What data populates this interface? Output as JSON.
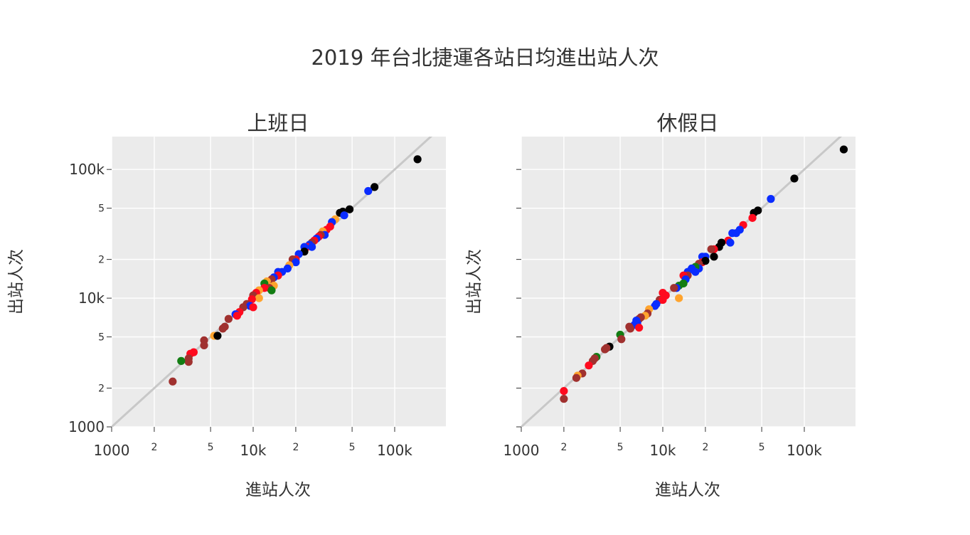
{
  "chart_data": {
    "type": "scatter",
    "title": "2019 年台北捷運各站日均進出站人次",
    "xlabel": "進站人次",
    "ylabel": "出站人次",
    "scale": "log",
    "xlim": [
      1000,
      230000
    ],
    "ylim": [
      1000,
      180000
    ],
    "grid": true,
    "background": "#ebebeb",
    "reference_line": "y = x",
    "x_ticks": [
      "1000",
      "2",
      "5",
      "10k",
      "2",
      "5",
      "100k"
    ],
    "y_ticks": [
      "1000",
      "2",
      "5",
      "10k",
      "2",
      "5",
      "100k"
    ],
    "colors": {
      "black": "#000000",
      "blue": "#0a2cff",
      "red": "#ff0a1e",
      "brown": "#a0312f",
      "orange": "#ffa42e",
      "green": "#137d13"
    },
    "panels": [
      {
        "title": "上班日",
        "points": [
          {
            "x": 145000,
            "y": 120000,
            "c": "black"
          },
          {
            "x": 72000,
            "y": 73000,
            "c": "black"
          },
          {
            "x": 65000,
            "y": 68000,
            "c": "blue"
          },
          {
            "x": 48000,
            "y": 49000,
            "c": "black"
          },
          {
            "x": 43000,
            "y": 47000,
            "c": "black"
          },
          {
            "x": 41000,
            "y": 46000,
            "c": "black"
          },
          {
            "x": 44000,
            "y": 44000,
            "c": "blue"
          },
          {
            "x": 38000,
            "y": 41000,
            "c": "orange"
          },
          {
            "x": 36000,
            "y": 39000,
            "c": "blue"
          },
          {
            "x": 35000,
            "y": 36000,
            "c": "red"
          },
          {
            "x": 33000,
            "y": 34000,
            "c": "red"
          },
          {
            "x": 31000,
            "y": 33000,
            "c": "orange"
          },
          {
            "x": 32000,
            "y": 31000,
            "c": "blue"
          },
          {
            "x": 30000,
            "y": 31000,
            "c": "brown"
          },
          {
            "x": 29000,
            "y": 30000,
            "c": "red"
          },
          {
            "x": 28000,
            "y": 29000,
            "c": "blue"
          },
          {
            "x": 27000,
            "y": 28000,
            "c": "red"
          },
          {
            "x": 26000,
            "y": 27000,
            "c": "brown"
          },
          {
            "x": 25000,
            "y": 26000,
            "c": "blue"
          },
          {
            "x": 24000,
            "y": 25000,
            "c": "red"
          },
          {
            "x": 26000,
            "y": 25000,
            "c": "blue"
          },
          {
            "x": 23000,
            "y": 25000,
            "c": "blue"
          },
          {
            "x": 23000,
            "y": 23000,
            "c": "black"
          },
          {
            "x": 21000,
            "y": 22000,
            "c": "blue"
          },
          {
            "x": 20000,
            "y": 20000,
            "c": "red"
          },
          {
            "x": 19000,
            "y": 20000,
            "c": "brown"
          },
          {
            "x": 20000,
            "y": 19000,
            "c": "blue"
          },
          {
            "x": 18000,
            "y": 18000,
            "c": "orange"
          },
          {
            "x": 17500,
            "y": 17000,
            "c": "blue"
          },
          {
            "x": 16000,
            "y": 16000,
            "c": "blue"
          },
          {
            "x": 15000,
            "y": 16000,
            "c": "blue"
          },
          {
            "x": 15000,
            "y": 15000,
            "c": "red"
          },
          {
            "x": 14000,
            "y": 14500,
            "c": "blue"
          },
          {
            "x": 13500,
            "y": 14000,
            "c": "brown"
          },
          {
            "x": 12500,
            "y": 13500,
            "c": "orange"
          },
          {
            "x": 12000,
            "y": 13000,
            "c": "green"
          },
          {
            "x": 14000,
            "y": 12500,
            "c": "orange"
          },
          {
            "x": 13000,
            "y": 12000,
            "c": "brown"
          },
          {
            "x": 12000,
            "y": 12000,
            "c": "red"
          },
          {
            "x": 13500,
            "y": 11500,
            "c": "green"
          },
          {
            "x": 11000,
            "y": 11500,
            "c": "orange"
          },
          {
            "x": 10500,
            "y": 11000,
            "c": "red"
          },
          {
            "x": 10000,
            "y": 10500,
            "c": "brown"
          },
          {
            "x": 11000,
            "y": 10000,
            "c": "orange"
          },
          {
            "x": 9800,
            "y": 9800,
            "c": "red"
          },
          {
            "x": 9000,
            "y": 9000,
            "c": "brown"
          },
          {
            "x": 9500,
            "y": 8700,
            "c": "blue"
          },
          {
            "x": 10000,
            "y": 8500,
            "c": "red"
          },
          {
            "x": 8500,
            "y": 8500,
            "c": "brown"
          },
          {
            "x": 8000,
            "y": 7800,
            "c": "red"
          },
          {
            "x": 7500,
            "y": 7500,
            "c": "blue"
          },
          {
            "x": 7700,
            "y": 7300,
            "c": "red"
          },
          {
            "x": 6700,
            "y": 6900,
            "c": "brown"
          },
          {
            "x": 6300,
            "y": 6000,
            "c": "brown"
          },
          {
            "x": 6100,
            "y": 5800,
            "c": "brown"
          },
          {
            "x": 5300,
            "y": 5100,
            "c": "orange"
          },
          {
            "x": 5600,
            "y": 5100,
            "c": "black"
          },
          {
            "x": 4500,
            "y": 4700,
            "c": "brown"
          },
          {
            "x": 4500,
            "y": 4300,
            "c": "brown"
          },
          {
            "x": 3800,
            "y": 3800,
            "c": "red"
          },
          {
            "x": 3600,
            "y": 3700,
            "c": "red"
          },
          {
            "x": 3500,
            "y": 3400,
            "c": "brown"
          },
          {
            "x": 3500,
            "y": 3200,
            "c": "brown"
          },
          {
            "x": 3100,
            "y": 3250,
            "c": "green"
          },
          {
            "x": 2700,
            "y": 2250,
            "c": "brown"
          }
        ]
      },
      {
        "title": "休假日",
        "points": [
          {
            "x": 190000,
            "y": 143000,
            "c": "black"
          },
          {
            "x": 85000,
            "y": 85000,
            "c": "black"
          },
          {
            "x": 58000,
            "y": 59000,
            "c": "blue"
          },
          {
            "x": 47000,
            "y": 48000,
            "c": "black"
          },
          {
            "x": 44000,
            "y": 46000,
            "c": "black"
          },
          {
            "x": 43000,
            "y": 42000,
            "c": "red"
          },
          {
            "x": 37000,
            "y": 37000,
            "c": "red"
          },
          {
            "x": 35000,
            "y": 34000,
            "c": "blue"
          },
          {
            "x": 33000,
            "y": 32000,
            "c": "blue"
          },
          {
            "x": 31000,
            "y": 32000,
            "c": "blue"
          },
          {
            "x": 29000,
            "y": 28000,
            "c": "red"
          },
          {
            "x": 30000,
            "y": 27000,
            "c": "blue"
          },
          {
            "x": 26000,
            "y": 27000,
            "c": "black"
          },
          {
            "x": 25000,
            "y": 25000,
            "c": "black"
          },
          {
            "x": 23000,
            "y": 24000,
            "c": "red"
          },
          {
            "x": 22000,
            "y": 24000,
            "c": "brown"
          },
          {
            "x": 20000,
            "y": 21000,
            "c": "blue"
          },
          {
            "x": 19000,
            "y": 21000,
            "c": "blue"
          },
          {
            "x": 23000,
            "y": 21000,
            "c": "black"
          },
          {
            "x": 19000,
            "y": 19000,
            "c": "red"
          },
          {
            "x": 20000,
            "y": 19500,
            "c": "black"
          },
          {
            "x": 18000,
            "y": 18500,
            "c": "brown"
          },
          {
            "x": 18000,
            "y": 17000,
            "c": "blue"
          },
          {
            "x": 17000,
            "y": 17500,
            "c": "green"
          },
          {
            "x": 16000,
            "y": 17000,
            "c": "blue"
          },
          {
            "x": 17000,
            "y": 16000,
            "c": "blue"
          },
          {
            "x": 15000,
            "y": 16000,
            "c": "blue"
          },
          {
            "x": 15000,
            "y": 15000,
            "c": "brown"
          },
          {
            "x": 14000,
            "y": 15000,
            "c": "red"
          },
          {
            "x": 14500,
            "y": 14000,
            "c": "blue"
          },
          {
            "x": 14000,
            "y": 13000,
            "c": "green"
          },
          {
            "x": 13000,
            "y": 12500,
            "c": "green"
          },
          {
            "x": 12500,
            "y": 12000,
            "c": "blue"
          },
          {
            "x": 12000,
            "y": 12000,
            "c": "brown"
          },
          {
            "x": 10000,
            "y": 11000,
            "c": "red"
          },
          {
            "x": 10500,
            "y": 10500,
            "c": "red"
          },
          {
            "x": 13000,
            "y": 10000,
            "c": "orange"
          },
          {
            "x": 9500,
            "y": 9700,
            "c": "brown"
          },
          {
            "x": 10000,
            "y": 9700,
            "c": "red"
          },
          {
            "x": 9000,
            "y": 9000,
            "c": "blue"
          },
          {
            "x": 8800,
            "y": 8700,
            "c": "blue"
          },
          {
            "x": 8000,
            "y": 8200,
            "c": "orange"
          },
          {
            "x": 7800,
            "y": 7600,
            "c": "brown"
          },
          {
            "x": 7500,
            "y": 7300,
            "c": "orange"
          },
          {
            "x": 7000,
            "y": 7100,
            "c": "brown"
          },
          {
            "x": 6800,
            "y": 6900,
            "c": "brown"
          },
          {
            "x": 6500,
            "y": 6700,
            "c": "blue"
          },
          {
            "x": 6600,
            "y": 6400,
            "c": "blue"
          },
          {
            "x": 6300,
            "y": 6200,
            "c": "blue"
          },
          {
            "x": 6800,
            "y": 5900,
            "c": "red"
          },
          {
            "x": 5800,
            "y": 6000,
            "c": "brown"
          },
          {
            "x": 5900,
            "y": 5800,
            "c": "brown"
          },
          {
            "x": 5000,
            "y": 5200,
            "c": "green"
          },
          {
            "x": 5100,
            "y": 4800,
            "c": "brown"
          },
          {
            "x": 4200,
            "y": 4200,
            "c": "black"
          },
          {
            "x": 4000,
            "y": 4100,
            "c": "brown"
          },
          {
            "x": 3900,
            "y": 4000,
            "c": "brown"
          },
          {
            "x": 3400,
            "y": 3500,
            "c": "green"
          },
          {
            "x": 3300,
            "y": 3400,
            "c": "brown"
          },
          {
            "x": 3200,
            "y": 3250,
            "c": "brown"
          },
          {
            "x": 3000,
            "y": 3000,
            "c": "red"
          },
          {
            "x": 2700,
            "y": 2600,
            "c": "brown"
          },
          {
            "x": 2500,
            "y": 2500,
            "c": "orange"
          },
          {
            "x": 2450,
            "y": 2400,
            "c": "brown"
          },
          {
            "x": 2000,
            "y": 1900,
            "c": "red"
          },
          {
            "x": 2000,
            "y": 1650,
            "c": "brown"
          }
        ]
      }
    ]
  }
}
